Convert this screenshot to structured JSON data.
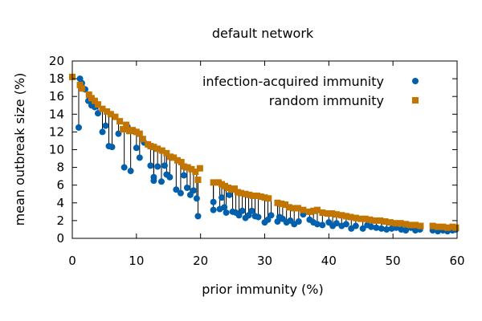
{
  "chart_data": {
    "type": "scatter",
    "title": "default network",
    "xlabel": "prior immunity (%)",
    "ylabel": "mean outbreak size (%)",
    "xlim": [
      0,
      60
    ],
    "ylim": [
      0,
      20
    ],
    "xticks": [
      "0",
      "10",
      "20",
      "30",
      "40",
      "50",
      "60"
    ],
    "yticks": [
      "0",
      "2",
      "4",
      "6",
      "8",
      "10",
      "12",
      "14",
      "16",
      "18",
      "20"
    ],
    "grid": false,
    "legend_position": "top-right",
    "series": [
      {
        "name": "infection-acquired immunity",
        "marker": "circle",
        "color": "#0060ad",
        "points": [
          [
            0,
            18.2
          ],
          [
            1,
            12.5
          ],
          [
            1.2,
            18
          ],
          [
            1.5,
            17.5
          ],
          [
            2,
            16.8
          ],
          [
            2.5,
            15.5
          ],
          [
            3,
            15
          ],
          [
            3.5,
            14.8
          ],
          [
            4,
            14.1
          ],
          [
            4.7,
            12
          ],
          [
            5.2,
            12.7
          ],
          [
            5.7,
            10.4
          ],
          [
            6.2,
            10.3
          ],
          [
            7.2,
            11.8
          ],
          [
            8.1,
            8
          ],
          [
            8.6,
            12.6
          ],
          [
            9.1,
            7.6
          ],
          [
            9.6,
            12.1
          ],
          [
            10,
            10.2
          ],
          [
            10.5,
            9.1
          ],
          [
            11.2,
            10.8
          ],
          [
            12.2,
            8.2
          ],
          [
            12.7,
            6.5
          ],
          [
            12.7,
            6.9
          ],
          [
            13.3,
            8.1
          ],
          [
            13.9,
            6.4
          ],
          [
            14.4,
            8.2
          ],
          [
            14.7,
            7.2
          ],
          [
            15.2,
            6.9
          ],
          [
            16.2,
            5.5
          ],
          [
            16.9,
            5.1
          ],
          [
            17.4,
            7.1
          ],
          [
            17.9,
            5.7
          ],
          [
            18.4,
            4.9
          ],
          [
            18.9,
            5.4
          ],
          [
            19.4,
            4.5
          ],
          [
            19.6,
            2.5
          ],
          [
            22,
            4.1
          ],
          [
            22,
            3.2
          ],
          [
            23,
            3.3
          ],
          [
            23.3,
            4.6
          ],
          [
            23.7,
            3.5
          ],
          [
            24,
            2.9
          ],
          [
            24.5,
            4.9
          ],
          [
            25,
            3
          ],
          [
            25.5,
            2.9
          ],
          [
            26,
            2.6
          ],
          [
            26.5,
            3.1
          ],
          [
            27,
            2.3
          ],
          [
            27.5,
            2.6
          ],
          [
            28,
            3.1
          ],
          [
            28.5,
            2.5
          ],
          [
            29,
            2.4
          ],
          [
            30,
            1.8
          ],
          [
            30.5,
            2.1
          ],
          [
            31,
            2.6
          ],
          [
            32,
            1.9
          ],
          [
            32.3,
            2.4
          ],
          [
            32.8,
            2.2
          ],
          [
            33.4,
            1.8
          ],
          [
            34,
            2
          ],
          [
            34.6,
            1.6
          ],
          [
            35.3,
            1.9
          ],
          [
            36,
            2.7
          ],
          [
            37,
            2.1
          ],
          [
            37.6,
            1.8
          ],
          [
            38.2,
            1.6
          ],
          [
            39,
            1.5
          ],
          [
            40,
            1.8
          ],
          [
            40.6,
            1.4
          ],
          [
            41.2,
            1.7
          ],
          [
            42,
            1.4
          ],
          [
            42.7,
            1.6
          ],
          [
            43.5,
            1.1
          ],
          [
            44.2,
            1.4
          ],
          [
            45.3,
            1.1
          ],
          [
            46,
            1.5
          ],
          [
            46.6,
            1.3
          ],
          [
            47.4,
            1.2
          ],
          [
            48.2,
            1.1
          ],
          [
            49,
            1
          ],
          [
            49.8,
            1.1
          ],
          [
            50.5,
            1.2
          ],
          [
            51.3,
            1
          ],
          [
            52,
            0.9
          ],
          [
            52.8,
            1.2
          ],
          [
            53.5,
            0.9
          ],
          [
            54.2,
            1
          ],
          [
            56.2,
            0.9
          ],
          [
            57,
            0.8
          ],
          [
            57.8,
            0.9
          ],
          [
            58.5,
            0.8
          ],
          [
            59.3,
            0.9
          ],
          [
            59.8,
            1
          ]
        ]
      },
      {
        "name": "random immunity",
        "marker": "square",
        "color": "#c27500",
        "points": [
          [
            0,
            18.2
          ],
          [
            1.2,
            17.3
          ],
          [
            1.5,
            16.9
          ],
          [
            2.6,
            16.2
          ],
          [
            3,
            15.8
          ],
          [
            3.5,
            15.5
          ],
          [
            4,
            15.1
          ],
          [
            4.7,
            14.6
          ],
          [
            5.4,
            14.3
          ],
          [
            6,
            14
          ],
          [
            6.7,
            13.7
          ],
          [
            7.4,
            13.2
          ],
          [
            7.9,
            12.3
          ],
          [
            8.4,
            12.8
          ],
          [
            8.9,
            12.1
          ],
          [
            9.4,
            12.2
          ],
          [
            10,
            12
          ],
          [
            10.5,
            11.8
          ],
          [
            11,
            11.2
          ],
          [
            11.8,
            10.6
          ],
          [
            12.2,
            10.4
          ],
          [
            12.7,
            10.3
          ],
          [
            13.3,
            10.1
          ],
          [
            14,
            9.9
          ],
          [
            14.7,
            9.6
          ],
          [
            15.3,
            9.2
          ],
          [
            15.8,
            9.1
          ],
          [
            16.4,
            8.8
          ],
          [
            17,
            8.6
          ],
          [
            17.4,
            8.1
          ],
          [
            18,
            8
          ],
          [
            18.6,
            7.8
          ],
          [
            19.2,
            7.5
          ],
          [
            19.6,
            6.6
          ],
          [
            19.9,
            7.9
          ],
          [
            22,
            6.3
          ],
          [
            22.8,
            6.3
          ],
          [
            23.3,
            6.1
          ],
          [
            23.8,
            5.9
          ],
          [
            24.3,
            5.7
          ],
          [
            24.8,
            5.5
          ],
          [
            25.3,
            5.6
          ],
          [
            25.8,
            5.2
          ],
          [
            26.3,
            5.1
          ],
          [
            27,
            5
          ],
          [
            27.6,
            4.9
          ],
          [
            28.2,
            4.8
          ],
          [
            28.8,
            4.8
          ],
          [
            29.4,
            4.7
          ],
          [
            30,
            4.6
          ],
          [
            30.6,
            4.5
          ],
          [
            32,
            4
          ],
          [
            32.6,
            3.9
          ],
          [
            33.2,
            3.8
          ],
          [
            33.8,
            3.5
          ],
          [
            34.5,
            3.4
          ],
          [
            35.2,
            3.4
          ],
          [
            36,
            3.2
          ],
          [
            37,
            3
          ],
          [
            37.6,
            3.1
          ],
          [
            38.2,
            3.2
          ],
          [
            39,
            2.9
          ],
          [
            39.8,
            2.8
          ],
          [
            40.5,
            2.8
          ],
          [
            41.2,
            2.7
          ],
          [
            42,
            2.6
          ],
          [
            42.7,
            2.5
          ],
          [
            43.4,
            2.4
          ],
          [
            44.2,
            2.3
          ],
          [
            45,
            2.2
          ],
          [
            45.7,
            2.2
          ],
          [
            46.4,
            2.1
          ],
          [
            47.2,
            2
          ],
          [
            48,
            2
          ],
          [
            48.8,
            1.9
          ],
          [
            49.6,
            1.8
          ],
          [
            50.4,
            1.7
          ],
          [
            51.2,
            1.7
          ],
          [
            52,
            1.6
          ],
          [
            52.8,
            1.5
          ],
          [
            53.5,
            1.5
          ],
          [
            54.3,
            1.4
          ],
          [
            56.2,
            1.4
          ],
          [
            57,
            1.3
          ],
          [
            57.8,
            1.3
          ],
          [
            58.5,
            1.2
          ],
          [
            59.3,
            1.3
          ],
          [
            59.8,
            1.2
          ]
        ]
      }
    ]
  }
}
